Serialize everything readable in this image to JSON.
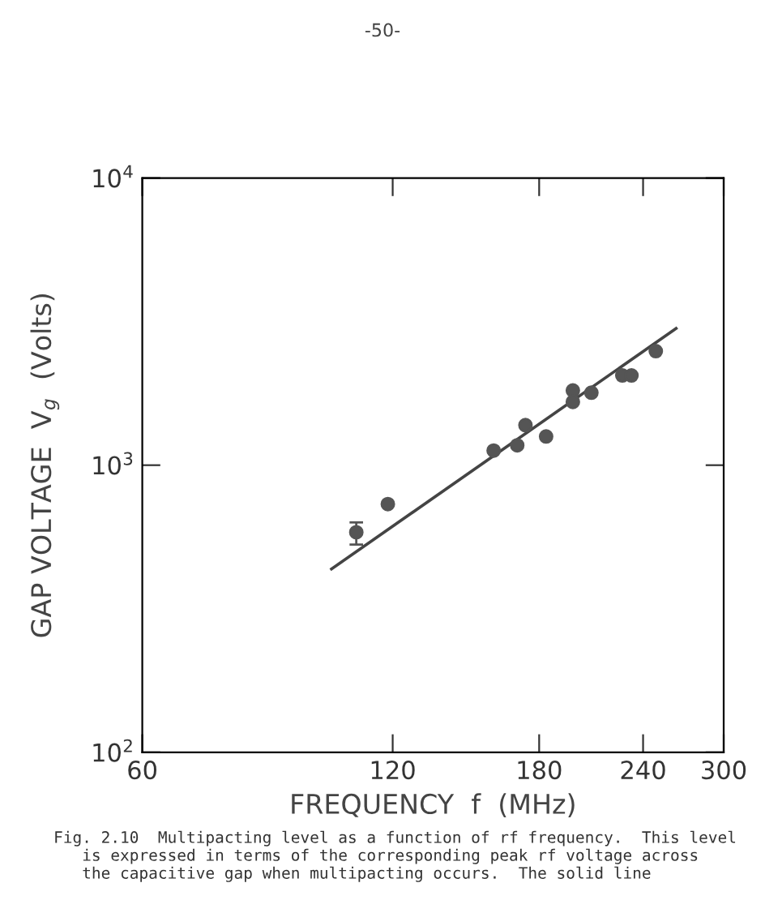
{
  "chart_data": {
    "type": "scatter",
    "xlabel": "FREQUENCY  f  (MHz)",
    "ylabel": "GAP VOLTAGE  V$_{g}$  (Volts)",
    "log": "xy",
    "xlim": [
      60,
      300
    ],
    "ylim": [
      100,
      10000
    ],
    "xticks": [
      60,
      120,
      180,
      240,
      300
    ],
    "yticks": [
      {
        "value": 100,
        "label": "10$^{2}$"
      },
      {
        "value": 1000,
        "label": "10$^{3}$"
      },
      {
        "value": 10000,
        "label": "10$^{4}$"
      }
    ],
    "grid": false,
    "marker": "circle",
    "series": [
      {
        "color": "#555555",
        "x": [
          108.5,
          118.4,
          158.7,
          169.4,
          173.3,
          183.5,
          197.6,
          197.6,
          208,
          226.6,
          232.4,
          248.6
        ],
        "values": [
          584,
          732,
          1124,
          1173,
          1379,
          1259,
          1820,
          1661,
          1788,
          2053,
          2053,
          2495
        ],
        "errors": [
          [
            529,
            632
          ],
          null,
          null,
          null,
          null,
          null,
          null,
          null,
          null,
          null,
          null,
          null
        ]
      },
      {
        "type": "line",
        "color": "#444444",
        "x": [
          101.3,
          263
        ],
        "values": [
          435,
          2994
        ],
        "marker": "none",
        "line_style": "solid"
      }
    ],
    "annotations": [
      "-50-",
      "Fig. 2.10  Multipacting level as a function of rf frequency.  This level\n   is expressed in terms of the corresponding peak rf voltage across\n   the capacitive gap when multipacting occurs.  The solid line"
    ]
  }
}
